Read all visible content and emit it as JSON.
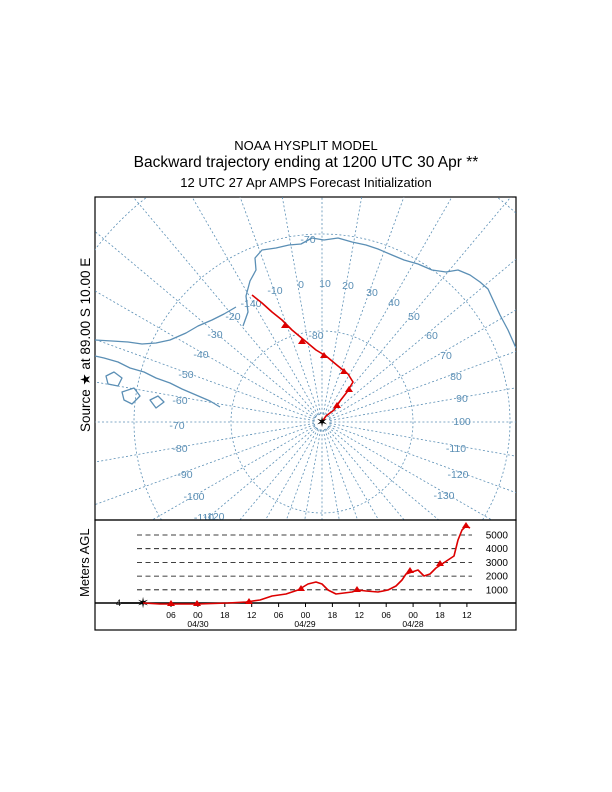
{
  "header": {
    "line1": "NOAA HYSPLIT MODEL",
    "line2": "Backward trajectory ending at 1200 UTC 30 Apr **",
    "line3": "12 UTC 27 Apr    AMPS  Forecast Initialization"
  },
  "map": {
    "source_label": "Source ★ at   89.00 S   10.00 E",
    "latitude_label": "-80",
    "meridian_labels": [
      "-10",
      "0",
      "10",
      "20",
      "30",
      "40",
      "50",
      "60",
      "70",
      "80",
      "90",
      "100",
      "-110",
      "-120",
      "-130",
      "-140",
      "-20",
      "-30",
      "-40",
      "-50",
      "-60",
      "-70",
      "-80",
      "-90",
      "-100",
      "-110",
      "-120",
      "-70"
    ],
    "trajectory_marker": "triangle",
    "source_marker": "star"
  },
  "colors": {
    "trajectory": "#dd0000",
    "grid": "#5b8fb5",
    "coast": "#5b8fb5"
  },
  "height_panel": {
    "ylabel": "Meters AGL",
    "levels": [
      "5000",
      "4000",
      "3000",
      "2000",
      "1000"
    ],
    "time_ticks": [
      "06",
      "00",
      "18",
      "12",
      "06",
      "00",
      "18",
      "12",
      "06",
      "00",
      "18",
      "12"
    ],
    "date_labels": [
      "04/30",
      "04/29",
      "04/28"
    ],
    "left_marker": "4"
  }
}
